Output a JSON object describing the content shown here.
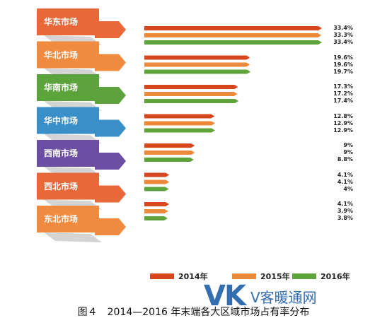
{
  "chart_data": {
    "type": "bar",
    "orientation": "horizontal",
    "categories": [
      "华东市场",
      "华北市场",
      "华南市场",
      "华中市场",
      "西南市场",
      "西北市场",
      "东北市场"
    ],
    "series": [
      {
        "name": "2014年",
        "color": "#d6471f",
        "values": [
          33.4,
          19.6,
          17.3,
          12.8,
          9,
          4.1,
          4.1
        ]
      },
      {
        "name": "2015年",
        "color": "#ec8a3c",
        "values": [
          33.3,
          19.6,
          17.2,
          12.9,
          9,
          4.1,
          3.9
        ]
      },
      {
        "name": "2016年",
        "color": "#5ea43a",
        "values": [
          33.4,
          19.7,
          17.4,
          12.9,
          8.8,
          4,
          3.8
        ]
      }
    ],
    "value_labels": [
      [
        "33.4%",
        "33.3%",
        "33.4%"
      ],
      [
        "19.6%",
        "19.6%",
        "19.7%"
      ],
      [
        "17.3%",
        "17.2%",
        "17.4%"
      ],
      [
        "12.8%",
        "12.9%",
        "12.9%"
      ],
      [
        "9%",
        "9%",
        "8.8%"
      ],
      [
        "4.1%",
        "4.1%",
        "4%"
      ],
      [
        "4.1%",
        "3.9%",
        "3.8%"
      ]
    ],
    "region_colors": [
      "#e8683a",
      "#ef8a3e",
      "#5da33c",
      "#3a8fc8",
      "#6c4ea3",
      "#e8683a",
      "#ef8a3e"
    ],
    "legend_position": "bottom",
    "grid": false
  },
  "caption": "图４　2014—2016 年末端各大区域市场占有率分布",
  "watermark": {
    "logo": "VK",
    "text": "V客暖通网"
  }
}
